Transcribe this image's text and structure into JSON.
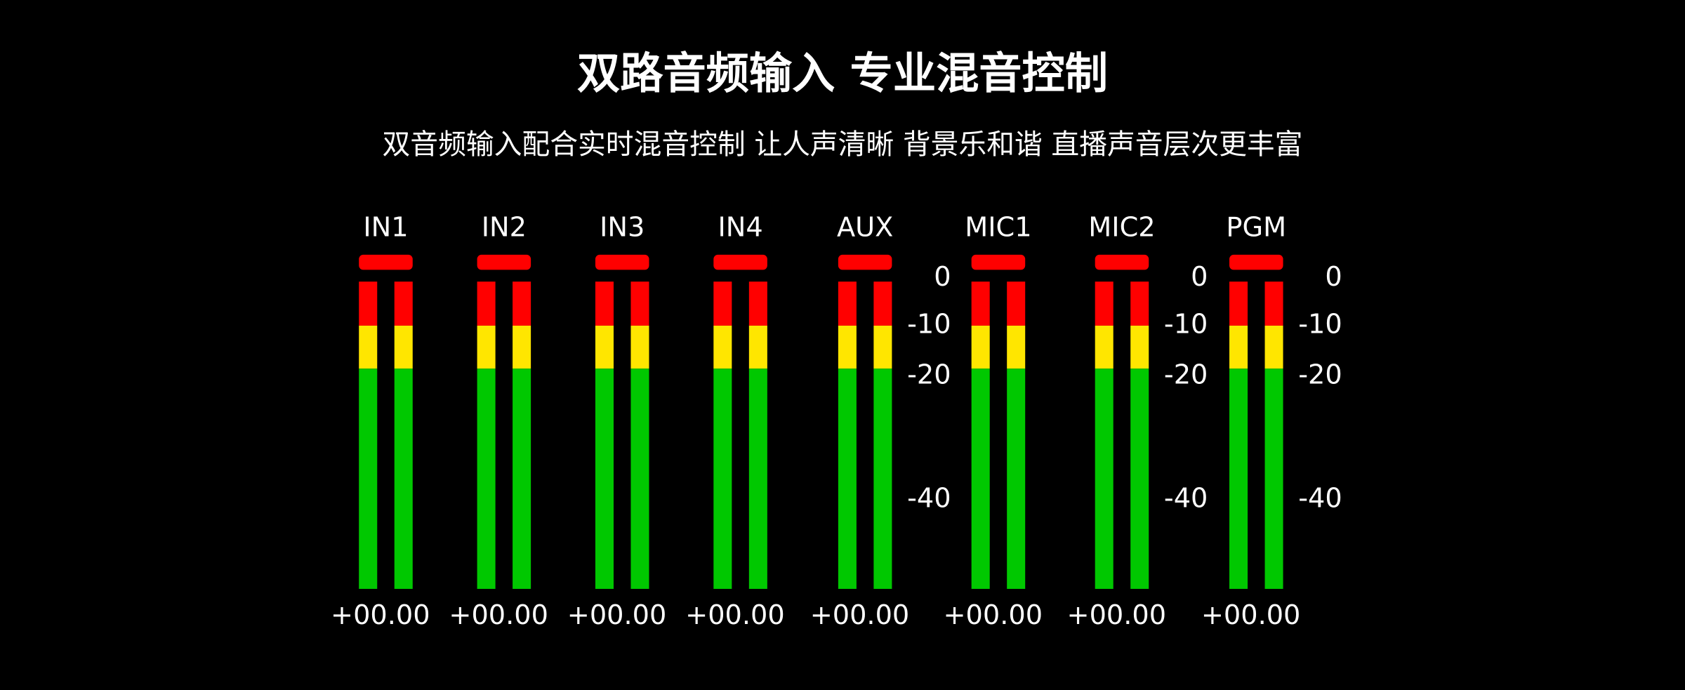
{
  "header": {
    "title": "双路音频输入 专业混音控制",
    "subtitle": "双音频输入配合实时混音控制 让人声清晰 背景乐和谐 直播声音层次更丰富"
  },
  "channels": [
    {
      "label": "IN1",
      "readout": "+00.00"
    },
    {
      "label": "IN2",
      "readout": "+00.00"
    },
    {
      "label": "IN3",
      "readout": "+00.00"
    },
    {
      "label": "IN4",
      "readout": "+00.00"
    },
    {
      "label": "AUX",
      "readout": "+00.00",
      "scale": [
        "0",
        "-10",
        "-20",
        "-40"
      ]
    },
    {
      "label": "MIC1",
      "readout": "+00.00"
    },
    {
      "label": "MIC2",
      "readout": "+00.00",
      "scale": [
        "0",
        "-10",
        "-20",
        "-40"
      ]
    },
    {
      "label": "PGM",
      "readout": "+00.00",
      "scale": [
        "0",
        "-10",
        "-20",
        "-40"
      ]
    }
  ]
}
